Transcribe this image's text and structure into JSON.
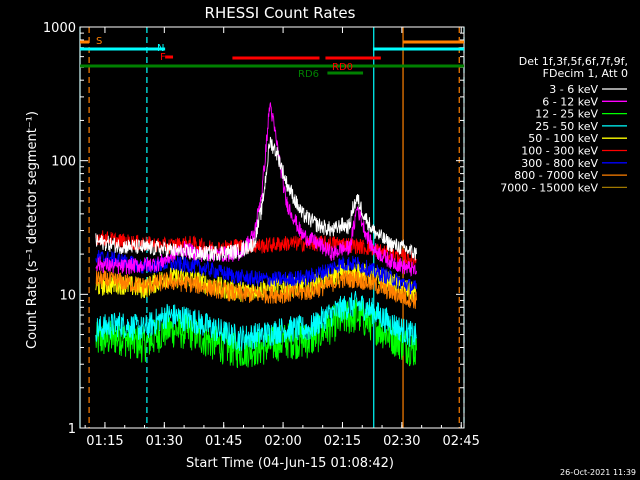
{
  "chart_data": {
    "type": "line",
    "title": "RHESSI Count Rates",
    "xlabel": "Start Time (04-Jun-15 01:08:42)",
    "ylabel": "Count Rate (s⁻¹ detector segment⁻¹)",
    "y_scale": "log",
    "ylim": [
      1,
      1000
    ],
    "xlim_minutes": [
      0,
      97
    ],
    "x_ticks": [
      {
        "label": "01:15",
        "t": 6.3
      },
      {
        "label": "01:30",
        "t": 21.3
      },
      {
        "label": "01:45",
        "t": 36.3
      },
      {
        "label": "02:00",
        "t": 51.3
      },
      {
        "label": "02:15",
        "t": 66.3
      },
      {
        "label": "02:30",
        "t": 81.3
      },
      {
        "label": "02:45",
        "t": 96.3
      }
    ],
    "y_ticks": [
      {
        "label": "1",
        "v": 1
      },
      {
        "label": "10",
        "v": 10
      },
      {
        "label": "100",
        "v": 100
      },
      {
        "label": "1000",
        "v": 1000
      }
    ],
    "legend_header": [
      "Det 1f,3f,5f,6f,7f,9f,",
      "FDecim 1, Att 0"
    ],
    "legend_location": "right",
    "series": [
      {
        "name": "3 - 6 keV",
        "color": "#ffffff",
        "t": [
          4,
          10,
          20,
          30,
          40,
          44,
          46,
          48,
          50,
          52,
          56,
          60,
          64,
          66,
          68,
          69,
          70,
          72,
          74,
          78,
          82,
          85
        ],
        "values": [
          25,
          23,
          22,
          20,
          21,
          24,
          45,
          140,
          110,
          70,
          40,
          33,
          30,
          33,
          32,
          45,
          52,
          38,
          30,
          24,
          22,
          20
        ]
      },
      {
        "name": "6 - 12 keV",
        "color": "#ff00ff",
        "t": [
          4,
          10,
          20,
          26,
          30,
          40,
          44,
          46,
          48,
          50,
          52,
          56,
          60,
          64,
          66,
          68,
          69,
          70,
          72,
          74,
          78,
          82,
          85
        ],
        "values": [
          17,
          16,
          17,
          22,
          20,
          20,
          28,
          60,
          270,
          120,
          50,
          28,
          24,
          20,
          22,
          22,
          30,
          45,
          30,
          22,
          18,
          16,
          15
        ]
      },
      {
        "name": "12 - 25 keV",
        "color": "#00ff00",
        "t": [
          4,
          10,
          16,
          22,
          28,
          34,
          40,
          46,
          52,
          58,
          62,
          66,
          70,
          74,
          78,
          82,
          85
        ],
        "values": [
          4.5,
          4.8,
          4.2,
          5.5,
          5.2,
          4.3,
          3.8,
          4.0,
          4.5,
          4.5,
          5.5,
          6.5,
          7.0,
          6.0,
          5.0,
          4.2,
          3.8
        ]
      },
      {
        "name": "25 - 50 keV",
        "color": "#00ffff",
        "t": [
          4,
          10,
          16,
          22,
          28,
          34,
          40,
          46,
          52,
          58,
          62,
          66,
          70,
          74,
          78,
          82,
          85
        ],
        "values": [
          5.5,
          6.0,
          5.5,
          7.0,
          6.5,
          5.5,
          4.7,
          5.0,
          5.5,
          5.5,
          6.8,
          7.8,
          8.5,
          7.5,
          6.2,
          5.3,
          4.8
        ]
      },
      {
        "name": "50 - 100 keV",
        "color": "#ffff00",
        "t": [
          4,
          10,
          16,
          22,
          28,
          34,
          40,
          46,
          52,
          58,
          62,
          66,
          70,
          74,
          78,
          82,
          85
        ],
        "values": [
          11.5,
          12,
          11,
          13.5,
          13,
          11.5,
          10.5,
          11,
          11.5,
          11.5,
          13,
          14.5,
          15,
          13.5,
          12.5,
          11,
          10
        ]
      },
      {
        "name": "100 - 300 keV",
        "color": "#ff0000",
        "t": [
          4,
          10,
          16,
          22,
          28,
          34,
          40,
          46,
          52,
          58,
          62,
          66,
          70,
          74,
          78,
          82,
          85
        ],
        "values": [
          27,
          25,
          24,
          23,
          24,
          22,
          23,
          23,
          24,
          24,
          24,
          24,
          23,
          22,
          20,
          19,
          18
        ]
      },
      {
        "name": "300 - 800 keV",
        "color": "#0000ff",
        "t": [
          4,
          10,
          16,
          22,
          28,
          34,
          40,
          46,
          52,
          58,
          62,
          66,
          70,
          74,
          78,
          82,
          85
        ],
        "values": [
          19,
          18,
          16,
          17,
          16.5,
          15,
          13.5,
          13,
          13,
          13.5,
          15,
          17,
          17,
          15,
          13.5,
          12,
          11
        ]
      },
      {
        "name": "800 - 7000 keV",
        "color": "#ff8000",
        "t": [
          4,
          10,
          16,
          22,
          28,
          34,
          40,
          46,
          52,
          58,
          62,
          66,
          70,
          74,
          78,
          82,
          85
        ],
        "values": [
          13,
          12.5,
          11.5,
          12.5,
          12,
          11,
          10,
          10,
          10,
          10.5,
          11.5,
          13,
          13,
          12,
          10.5,
          9.5,
          9
        ]
      },
      {
        "name": "7000 - 15000 keV",
        "color": "#a07800",
        "t": [],
        "values": []
      }
    ],
    "bars": [
      {
        "label": "S",
        "color": "#ff8000",
        "row": "top",
        "segments": [
          [
            0,
            2.3
          ],
          [
            81.7,
            97
          ]
        ]
      },
      {
        "label": "N",
        "color": "#00ffff",
        "row": "second",
        "segments": [
          [
            0,
            21.5
          ],
          [
            74,
            97
          ]
        ]
      },
      {
        "label": "F",
        "color": "#ff0000",
        "row": "third",
        "segments": [
          [
            21.5,
            23.5
          ]
        ]
      },
      {
        "label": "",
        "color": "#ff0000",
        "row": "fourth-left",
        "segments": [
          [
            38.5,
            60.5
          ]
        ]
      },
      {
        "label": "RD0",
        "color": "#ff0000",
        "row": "fourth-right",
        "segments": [
          [
            62,
            76
          ]
        ]
      },
      {
        "label": "",
        "color": "#008000",
        "row": "main",
        "segments": [
          [
            0,
            97
          ]
        ]
      },
      {
        "label": "RD6",
        "color": "#008000",
        "row": "lower",
        "segments": [
          [
            62.5,
            71.5
          ]
        ]
      }
    ],
    "vlines": [
      {
        "t": 0,
        "color": "#00ffff",
        "style": "solid"
      },
      {
        "t": 2.3,
        "color": "#ff8000",
        "style": "dashed"
      },
      {
        "t": 16.9,
        "color": "#00ffff",
        "style": "dashed"
      },
      {
        "t": 74.2,
        "color": "#00ffff",
        "style": "solid"
      },
      {
        "t": 81.6,
        "color": "#ff8000",
        "style": "solid"
      },
      {
        "t": 95.8,
        "color": "#ff8000",
        "style": "dashed"
      },
      {
        "t": 97,
        "color": "#00ffff",
        "style": "dashed"
      }
    ],
    "timestamp": "26-Oct-2021 11:39"
  }
}
